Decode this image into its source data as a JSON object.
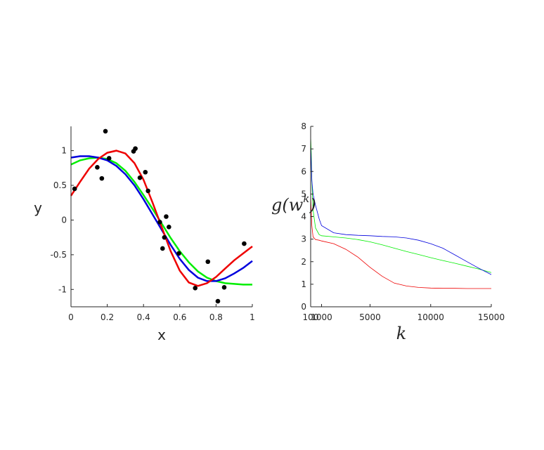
{
  "chart_data": [
    {
      "type": "scatter",
      "xlabel": "x",
      "ylabel": "y",
      "xlim": [
        0,
        1
      ],
      "ylim": [
        -1.25,
        1.35
      ],
      "x_ticks": [
        "0",
        "0.2",
        "0.4",
        "0.6",
        "0.8",
        "1"
      ],
      "y_ticks": [
        "1",
        "0.5",
        "0",
        "-0.5",
        "-1"
      ],
      "points": {
        "color": "#000000",
        "x": [
          0.02,
          0.145,
          0.17,
          0.19,
          0.21,
          0.345,
          0.355,
          0.38,
          0.41,
          0.425,
          0.49,
          0.505,
          0.515,
          0.525,
          0.54,
          0.595,
          0.685,
          0.755,
          0.81,
          0.845,
          0.955
        ],
        "y": [
          0.45,
          0.76,
          0.6,
          1.28,
          0.89,
          0.99,
          1.03,
          0.61,
          0.69,
          0.42,
          -0.03,
          -0.41,
          -0.25,
          0.05,
          -0.1,
          -0.48,
          -0.98,
          -0.6,
          -1.17,
          -0.97,
          -0.34
        ]
      },
      "series": [
        {
          "color": "#00ee00",
          "x": [
            0,
            0.05,
            0.1,
            0.15,
            0.2,
            0.25,
            0.3,
            0.35,
            0.4,
            0.45,
            0.5,
            0.55,
            0.6,
            0.65,
            0.7,
            0.75,
            0.8,
            0.85,
            0.9,
            0.95,
            1.0
          ],
          "y": [
            0.8,
            0.86,
            0.89,
            0.9,
            0.88,
            0.82,
            0.71,
            0.55,
            0.36,
            0.16,
            -0.05,
            -0.26,
            -0.45,
            -0.61,
            -0.74,
            -0.83,
            -0.88,
            -0.91,
            -0.92,
            -0.93,
            -0.93
          ]
        },
        {
          "color": "#0000dd",
          "x": [
            0,
            0.05,
            0.1,
            0.15,
            0.2,
            0.25,
            0.3,
            0.35,
            0.4,
            0.45,
            0.5,
            0.55,
            0.6,
            0.65,
            0.7,
            0.75,
            0.8,
            0.85,
            0.9,
            0.95,
            1.0
          ],
          "y": [
            0.9,
            0.92,
            0.92,
            0.9,
            0.86,
            0.78,
            0.66,
            0.5,
            0.3,
            0.08,
            -0.14,
            -0.36,
            -0.56,
            -0.72,
            -0.83,
            -0.88,
            -0.88,
            -0.84,
            -0.77,
            -0.69,
            -0.59
          ]
        },
        {
          "color": "#ee0000",
          "x": [
            0,
            0.05,
            0.1,
            0.15,
            0.2,
            0.25,
            0.3,
            0.35,
            0.4,
            0.45,
            0.5,
            0.55,
            0.6,
            0.65,
            0.7,
            0.75,
            0.8,
            0.85,
            0.9,
            0.95,
            1.0
          ],
          "y": [
            0.35,
            0.55,
            0.74,
            0.88,
            0.97,
            1.0,
            0.96,
            0.82,
            0.58,
            0.25,
            -0.1,
            -0.45,
            -0.73,
            -0.9,
            -0.95,
            -0.91,
            -0.82,
            -0.7,
            -0.58,
            -0.48,
            -0.38
          ]
        }
      ]
    },
    {
      "type": "line",
      "xlabel": "k",
      "ylabel_main": "g(w",
      "ylabel_sup": "k",
      "ylabel_close": ")",
      "xlim": [
        100,
        15000
      ],
      "ylim": [
        0,
        8
      ],
      "x_ticks": [
        "100",
        "1000",
        "5000",
        "10000",
        "15000"
      ],
      "y_ticks": [
        "0",
        "1",
        "2",
        "3",
        "4",
        "5",
        "6",
        "7",
        "8"
      ],
      "series": [
        {
          "color": "#00ee00",
          "x": [
            100,
            150,
            200,
            300,
            500,
            800,
            1000,
            2000,
            3000,
            4000,
            5000,
            6000,
            7000,
            8000,
            9000,
            10000,
            11000,
            12000,
            13000,
            14000,
            15000
          ],
          "y": [
            7.55,
            6.8,
            5.6,
            4.3,
            3.5,
            3.2,
            3.15,
            3.1,
            3.05,
            2.98,
            2.88,
            2.75,
            2.6,
            2.45,
            2.32,
            2.18,
            2.05,
            1.93,
            1.8,
            1.67,
            1.52
          ]
        },
        {
          "color": "#0000dd",
          "x": [
            100,
            150,
            200,
            300,
            500,
            800,
            1000,
            2000,
            3000,
            4000,
            5000,
            6000,
            7000,
            8000,
            9000,
            10000,
            11000,
            12000,
            13000,
            14000,
            15000
          ],
          "y": [
            7.2,
            6.4,
            5.6,
            5.0,
            4.5,
            3.9,
            3.6,
            3.28,
            3.2,
            3.17,
            3.15,
            3.12,
            3.1,
            3.05,
            2.95,
            2.8,
            2.6,
            2.3,
            2.0,
            1.7,
            1.43
          ]
        },
        {
          "color": "#ee0000",
          "x": [
            100,
            150,
            200,
            300,
            500,
            800,
            1000,
            2000,
            3000,
            4000,
            5000,
            6000,
            7000,
            8000,
            9000,
            10000,
            11000,
            12000,
            13000,
            14000,
            15000
          ],
          "y": [
            4.9,
            4.2,
            3.6,
            3.1,
            2.98,
            2.95,
            2.92,
            2.8,
            2.55,
            2.2,
            1.75,
            1.35,
            1.05,
            0.92,
            0.86,
            0.83,
            0.82,
            0.82,
            0.81,
            0.81,
            0.81
          ]
        }
      ]
    }
  ]
}
